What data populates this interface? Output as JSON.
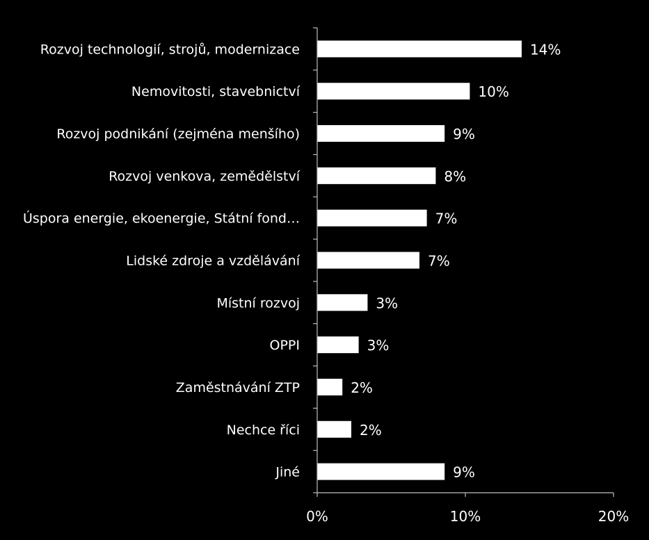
{
  "chart_data": {
    "type": "bar",
    "orientation": "horizontal",
    "categories": [
      "Rozvoj technologií, strojů, modernizace",
      "Nemovitosti, stavebnictví",
      "Rozvoj podnikání (zejména menšího)",
      "Rozvoj venkova, zemědělství",
      "Úspora energie, ekoenergie, Státní fond…",
      "Lidské zdroje a vzdělávání",
      "Místní rozvoj",
      "OPPI",
      "Zaměstnávání ZTP",
      "Nechce říci",
      "Jiné"
    ],
    "values": [
      13.8,
      10.3,
      8.6,
      8.0,
      7.4,
      6.9,
      3.4,
      2.8,
      1.7,
      2.3,
      8.6
    ],
    "data_labels": [
      "14%",
      "10%",
      "9%",
      "8%",
      "7%",
      "7%",
      "3%",
      "3%",
      "2%",
      "2%",
      "9%"
    ],
    "xlim": [
      0,
      20
    ],
    "xticks": [
      0,
      10,
      20
    ],
    "xtick_labels": [
      "0%",
      "10%",
      "20%"
    ],
    "title": "",
    "xlabel": "",
    "ylabel": "",
    "grid": false,
    "legend": "none",
    "colors": {
      "background": "#000000",
      "bar": "#ffffff",
      "text": "#ffffff",
      "axis": "#bfbfbf"
    }
  }
}
